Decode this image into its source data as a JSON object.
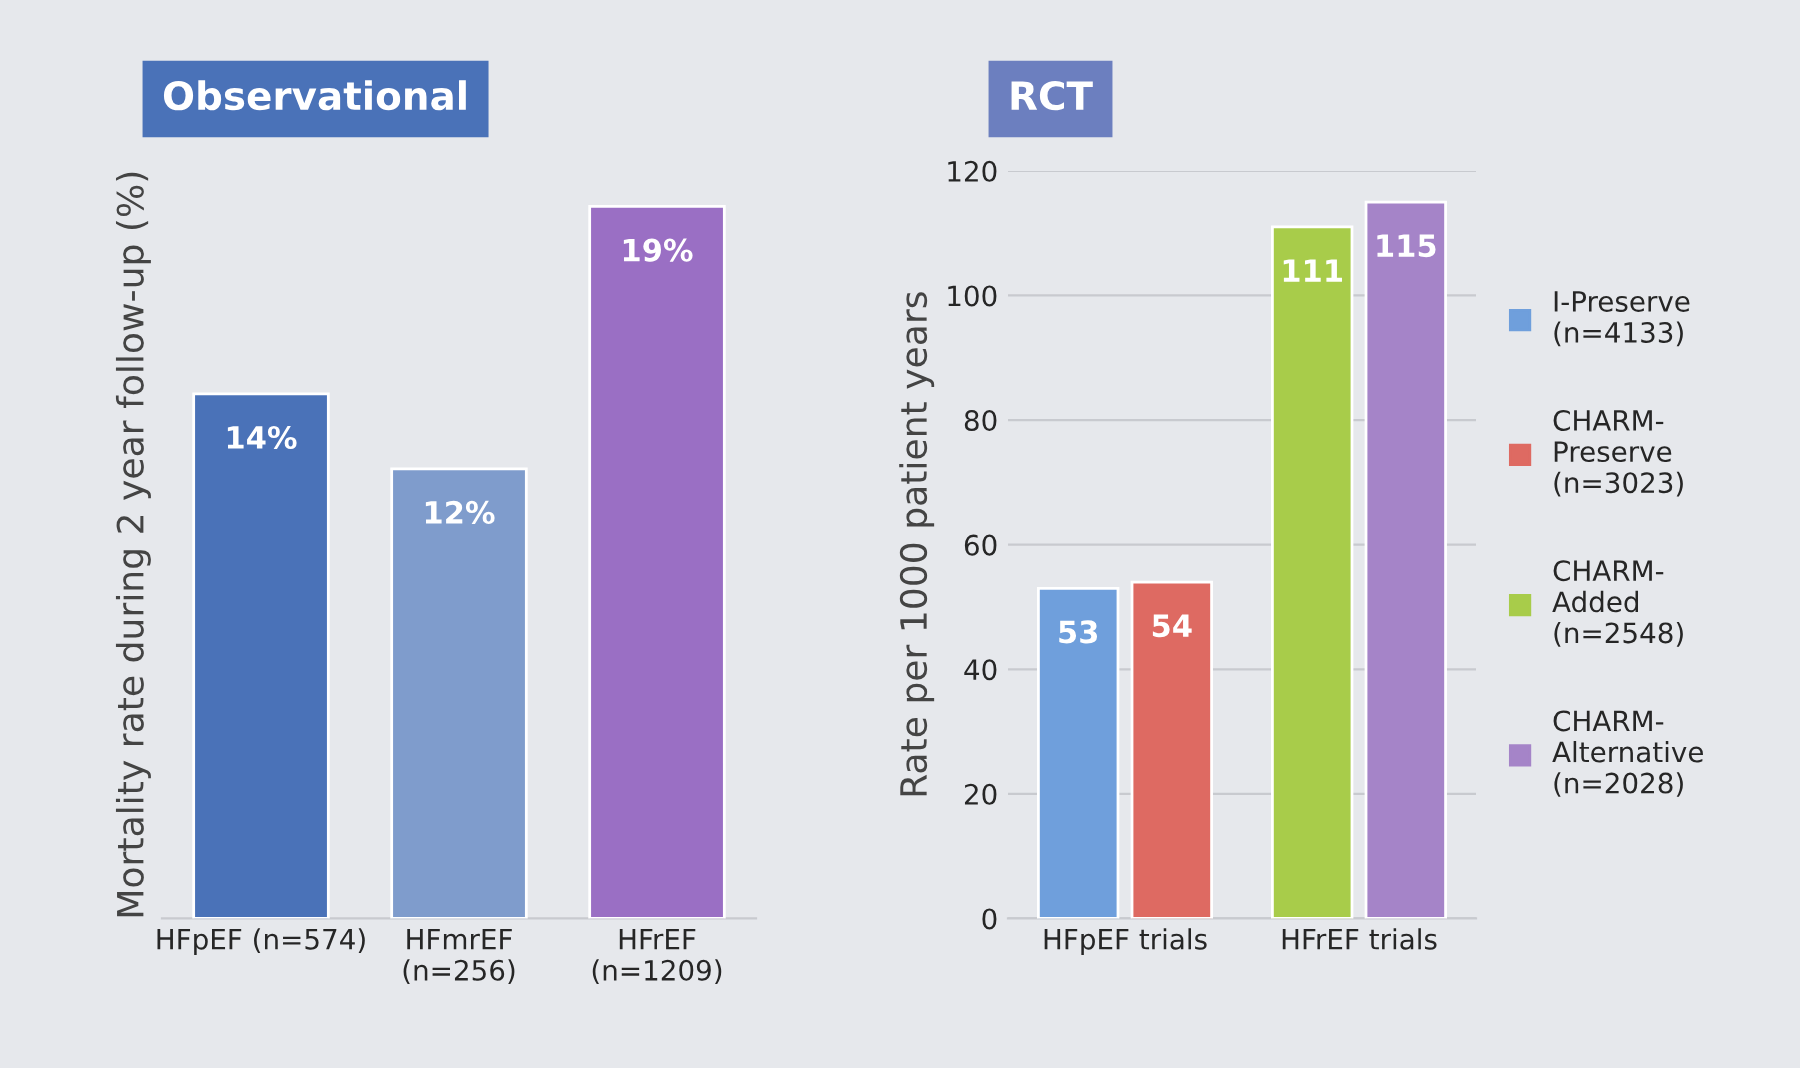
{
  "chart_data": [
    {
      "type": "bar",
      "title": "Observational",
      "ylabel": "Mortality rate during 2 year follow-up (%)",
      "categories": [
        "HFpEF (n=574)",
        "HFmrEF\n(n=256)",
        "HFrEF\n(n=1209)"
      ],
      "values": [
        14,
        12,
        19
      ],
      "colors": [
        "#4a72b8",
        "#7f9ccc",
        "#9a6fc4"
      ],
      "value_labels": [
        "14%",
        "12%",
        "19%"
      ],
      "grid": false,
      "legend": false
    },
    {
      "type": "bar",
      "title": "RCT",
      "ylabel": "Rate per 1000 patient years",
      "categories": [
        "HFpEF trials",
        "HFrEF trials"
      ],
      "series": [
        {
          "name": "I-Preserve\n(n=4133)",
          "color": "#6f9fdc",
          "values": [
            53,
            null
          ]
        },
        {
          "name": "CHARM-\nPreserve\n(n=3023)",
          "color": "#de6a62",
          "values": [
            54,
            null
          ]
        },
        {
          "name": "CHARM-\nAdded\n(n=2548)",
          "color": "#a8cc4a",
          "values": [
            null,
            111
          ]
        },
        {
          "name": "CHARM-\nAlternative\n(n=2028)",
          "color": "#a584c8",
          "values": [
            null,
            115
          ]
        }
      ],
      "ylim": [
        0,
        120
      ],
      "yticks": [
        0,
        20,
        40,
        60,
        80,
        100,
        120
      ],
      "grid": "y",
      "legend": "right",
      "data_labels": true
    }
  ]
}
